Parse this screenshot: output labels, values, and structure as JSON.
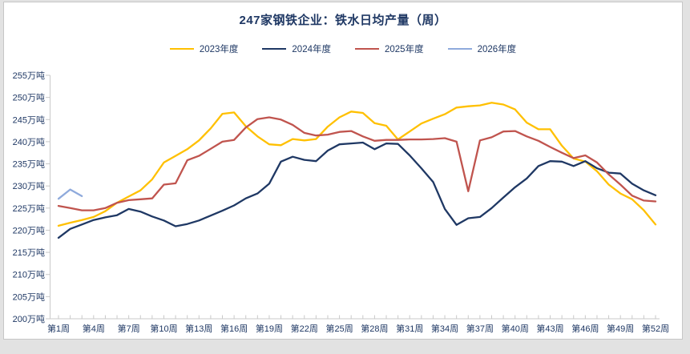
{
  "page": {
    "title": "247家钢铁企业：铁水日均产量（周）",
    "title_color": "#1F3864",
    "axis_text_color": "#1F3864",
    "axis_line_color": "#c9c9c9",
    "card_background": "#FFFFFF",
    "frame_background": "#E2E2E2"
  },
  "legend": {
    "items": [
      {
        "label": "2023年度",
        "color": "#FFC000"
      },
      {
        "label": "2024年度",
        "color": "#1F3864"
      },
      {
        "label": "2025年度",
        "color": "#C0544E"
      },
      {
        "label": "2026年度",
        "color": "#8FAADC"
      }
    ]
  },
  "chart_data": {
    "type": "line",
    "title": "247家钢铁企业：铁水日均产量（周）",
    "grid": false,
    "legend_position": "top",
    "ylim": [
      200,
      255
    ],
    "y_ticks": [
      255,
      250,
      245,
      240,
      235,
      230,
      225,
      220,
      215,
      210,
      205,
      200
    ],
    "y_tick_suffix": "万吨",
    "x_is_week_number": true,
    "xlim_weeks": [
      1,
      52
    ],
    "x_tick_weeks": [
      1,
      4,
      7,
      10,
      13,
      16,
      19,
      22,
      25,
      28,
      31,
      34,
      37,
      40,
      43,
      46,
      49,
      52
    ],
    "x_tick_labels": [
      "第1周",
      "第4周",
      "第7周",
      "第10周",
      "第13周",
      "第16周",
      "第19周",
      "第22周",
      "第25周",
      "第28周",
      "第31周",
      "第34周",
      "第37周",
      "第40周",
      "第43周",
      "第46周",
      "第49周",
      "第52周"
    ],
    "series": [
      {
        "name": "2023年度",
        "color": "#FFC000",
        "start_week": 1,
        "values": [
          221.0,
          221.7,
          222.3,
          223.0,
          224.3,
          226.2,
          227.6,
          229.0,
          231.5,
          235.3,
          236.8,
          238.3,
          240.3,
          243.0,
          246.3,
          246.6,
          243.5,
          241.2,
          239.4,
          239.2,
          240.6,
          240.3,
          240.6,
          243.4,
          245.5,
          246.8,
          246.5,
          244.2,
          243.6,
          240.5,
          242.3,
          244.1,
          245.2,
          246.2,
          247.7,
          248.0,
          248.2,
          248.8,
          248.4,
          247.3,
          244.3,
          242.8,
          242.8,
          239.1,
          236.2,
          235.5,
          233.3,
          230.3,
          228.3,
          227.0,
          224.5,
          221.3
        ]
      },
      {
        "name": "2024年度",
        "color": "#1F3864",
        "start_week": 1,
        "values": [
          218.3,
          220.3,
          221.3,
          222.3,
          222.9,
          223.4,
          224.8,
          224.2,
          223.1,
          222.2,
          220.9,
          221.4,
          222.2,
          223.3,
          224.4,
          225.6,
          227.2,
          228.3,
          230.5,
          235.5,
          236.6,
          235.9,
          235.6,
          238.0,
          239.4,
          239.6,
          239.8,
          238.3,
          239.6,
          239.5,
          236.9,
          234.0,
          230.9,
          224.8,
          221.2,
          222.7,
          223.0,
          225.0,
          227.4,
          229.7,
          231.7,
          234.5,
          235.6,
          235.5,
          234.5,
          235.6,
          234.0,
          233.0,
          232.8,
          230.5,
          229.0,
          227.9
        ]
      },
      {
        "name": "2025年度",
        "color": "#C0544E",
        "start_week": 1,
        "values": [
          225.5,
          225.0,
          224.5,
          224.5,
          225.0,
          226.2,
          226.8,
          227.0,
          227.2,
          230.3,
          230.6,
          235.8,
          236.8,
          238.4,
          240.0,
          240.4,
          243.2,
          245.1,
          245.5,
          245.0,
          243.8,
          242.0,
          241.4,
          241.6,
          242.2,
          242.4,
          241.2,
          240.2,
          240.4,
          240.4,
          240.5,
          240.5,
          240.6,
          240.8,
          240.0,
          228.8,
          240.3,
          241.0,
          242.3,
          242.4,
          241.2,
          240.2,
          238.8,
          237.5,
          236.3,
          236.9,
          235.3,
          232.6,
          230.3,
          227.8,
          226.7,
          226.5
        ]
      },
      {
        "name": "2026年度",
        "color": "#8FAADC",
        "start_week": 1,
        "values": [
          227.1,
          229.2,
          227.7
        ]
      }
    ]
  }
}
